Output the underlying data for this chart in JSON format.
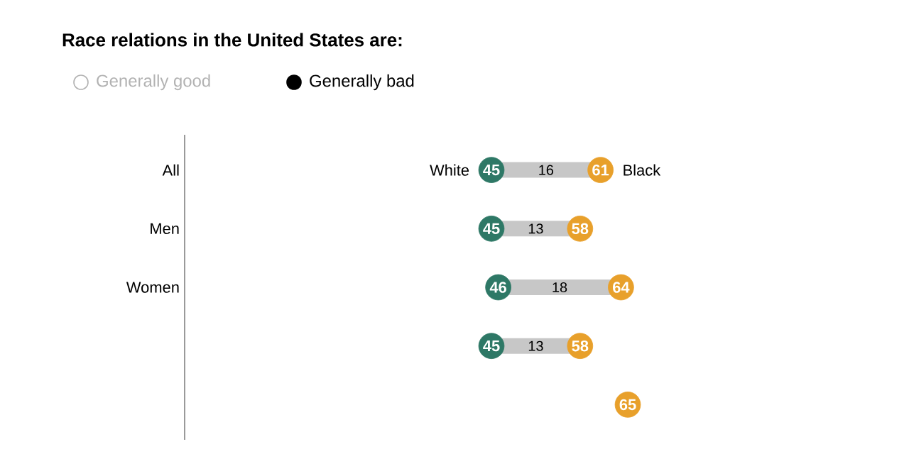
{
  "chart_data": {
    "type": "scatter",
    "orientation": "horizontal",
    "title": "Race relations in the United States are:",
    "annotations": [
      "Generally good",
      "Generally bad",
      "16",
      "13",
      "18",
      "13"
    ],
    "categories": [
      "All",
      "Men",
      "Women",
      null,
      null
    ],
    "data_labels": true,
    "legend": false,
    "marker": "circle",
    "series": [
      {
        "name": "White",
        "color": "#2e7866",
        "values": [
          45,
          45,
          46,
          45,
          null
        ]
      },
      {
        "name": "Black",
        "color": "#e8a02b",
        "values": [
          61,
          58,
          64,
          58,
          65
        ]
      }
    ]
  }
}
